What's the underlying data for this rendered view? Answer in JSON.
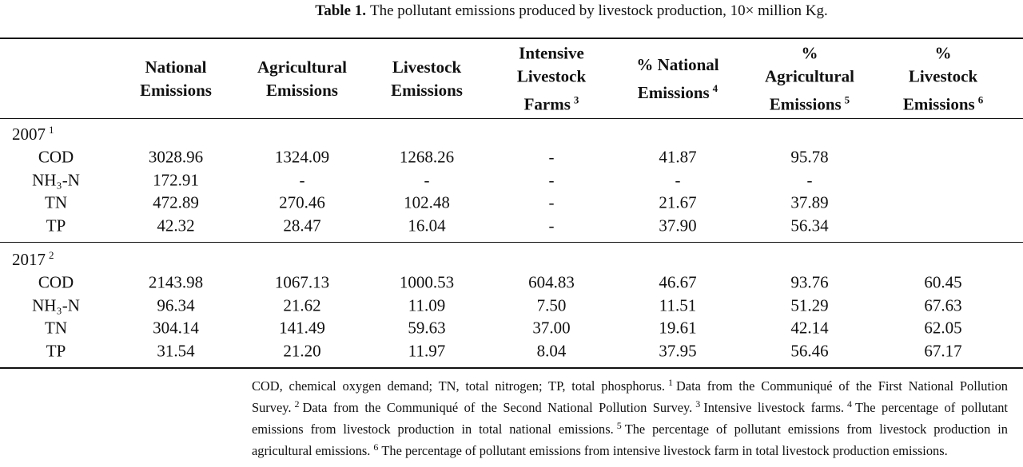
{
  "caption": {
    "label": "Table 1.",
    "text": "The pollutant emissions produced by livestock production, 10× million Kg."
  },
  "table": {
    "header": [
      {
        "lines": [
          "National",
          "Emissions"
        ]
      },
      {
        "lines": [
          "Agricultural",
          "Emissions"
        ]
      },
      {
        "lines": [
          "Livestock",
          "Emissions"
        ]
      },
      {
        "lines": [
          "Intensive",
          "Livestock",
          "Farms"
        ],
        "note": "3"
      },
      {
        "lines": [
          "% National",
          "Emissions"
        ],
        "note": "4"
      },
      {
        "lines": [
          "%",
          "Agricultural",
          "Emissions"
        ],
        "note": "5"
      },
      {
        "lines": [
          "%",
          "Livestock",
          "Emissions"
        ],
        "note": "6"
      }
    ],
    "groups": [
      {
        "label": "2007",
        "note": "1",
        "rows": [
          [
            "COD",
            "3028.96",
            "1324.09",
            "1268.26",
            "-",
            "41.87",
            "95.78"
          ],
          [
            "NH₃-N",
            "172.91",
            "-",
            "-",
            "-",
            "-",
            "-"
          ],
          [
            "TN",
            "472.89",
            "270.46",
            "102.48",
            "-",
            "21.67",
            "37.89"
          ],
          [
            "TP",
            "42.32",
            "28.47",
            "16.04",
            "-",
            "37.90",
            "56.34"
          ]
        ]
      },
      {
        "label": "2017",
        "note": "2",
        "rows": [
          [
            "COD",
            "2143.98",
            "1067.13",
            "1000.53",
            "604.83",
            "46.67",
            "93.76",
            "60.45"
          ],
          [
            "NH₃-N",
            "96.34",
            "21.62",
            "11.09",
            "7.50",
            "11.51",
            "51.29",
            "67.63"
          ],
          [
            "TN",
            "304.14",
            "141.49",
            "59.63",
            "37.00",
            "19.61",
            "42.14",
            "62.05"
          ],
          [
            "TP",
            "31.54",
            "21.20",
            "11.97",
            "8.04",
            "37.95",
            "56.46",
            "67.17"
          ]
        ]
      }
    ]
  },
  "footnote": [
    {
      "text": "COD, chemical oxygen demand; TN, total nitrogen; TP, total phosphorus."
    },
    {
      "sup": "1"
    },
    {
      "text": "Data from the Communiqué of the First National Pollution Survey."
    },
    {
      "sup": "2"
    },
    {
      "text": "Data from the Communiqué of the Second National Pollution Survey."
    },
    {
      "sup": "3"
    },
    {
      "text": "Intensive livestock farms."
    },
    {
      "sup": "4"
    },
    {
      "text": "The percentage of pollutant emissions from livestock production in total national emissions."
    },
    {
      "sup": "5"
    },
    {
      "text": "The percentage of pollutant emissions from livestock production in agricultural emissions."
    },
    {
      "sup": "6"
    },
    {
      "text": "The percentage of pollutant emissions from intensive livestock farm in total livestock production emissions."
    }
  ]
}
